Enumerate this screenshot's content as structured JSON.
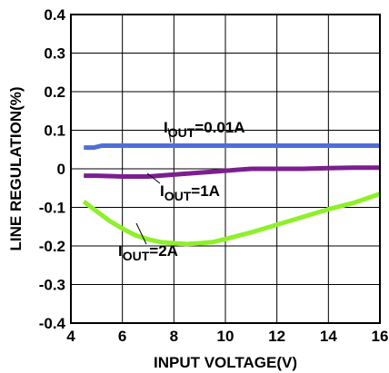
{
  "chart_data": {
    "type": "line",
    "xlabel": "INPUT VOLTAGE(V)",
    "ylabel": "LINE REGULATION(%)",
    "xlim": [
      4,
      16
    ],
    "ylim": [
      -0.4,
      0.4
    ],
    "x_ticks": [
      4,
      6,
      8,
      10,
      12,
      14,
      16
    ],
    "y_ticks": [
      0.4,
      0.3,
      0.2,
      0.1,
      0,
      -0.1,
      -0.2,
      -0.3,
      -0.4
    ],
    "x_tick_labels": [
      "4",
      "6",
      "8",
      "10",
      "12",
      "14",
      "16"
    ],
    "y_tick_labels": [
      "0.4",
      "0.3",
      "0.2",
      "0.1",
      "0",
      "-0.1",
      "-0.2",
      "-0.3",
      "-0.4"
    ],
    "grid": true,
    "series": [
      {
        "label_prefix": "I",
        "label_sub": "OUT",
        "label_suffix": "=0.01A",
        "color": "#4f6fd6",
        "points": [
          [
            4.5,
            0.055
          ],
          [
            4.9,
            0.055
          ],
          [
            5.2,
            0.06
          ],
          [
            6,
            0.06
          ],
          [
            8,
            0.06
          ],
          [
            10,
            0.06
          ],
          [
            12,
            0.06
          ],
          [
            14,
            0.06
          ],
          [
            16,
            0.06
          ]
        ]
      },
      {
        "label_prefix": "I",
        "label_sub": "OUT",
        "label_suffix": "=1A",
        "color": "#7b1f8f",
        "points": [
          [
            4.5,
            -0.018
          ],
          [
            5,
            -0.018
          ],
          [
            6,
            -0.02
          ],
          [
            7,
            -0.02
          ],
          [
            8,
            -0.015
          ],
          [
            9,
            -0.01
          ],
          [
            10,
            -0.005
          ],
          [
            11,
            0.0
          ],
          [
            12,
            0.0
          ],
          [
            13,
            0.0
          ],
          [
            14,
            0.002
          ],
          [
            15,
            0.003
          ],
          [
            16,
            0.003
          ]
        ]
      },
      {
        "label_prefix": "I",
        "label_sub": "OUT",
        "label_suffix": "=2A",
        "color": "#8ef02a",
        "points": [
          [
            4.5,
            -0.085
          ],
          [
            5,
            -0.11
          ],
          [
            5.5,
            -0.135
          ],
          [
            6,
            -0.155
          ],
          [
            6.5,
            -0.172
          ],
          [
            7,
            -0.183
          ],
          [
            7.5,
            -0.19
          ],
          [
            8,
            -0.193
          ],
          [
            8.5,
            -0.195
          ],
          [
            9,
            -0.193
          ],
          [
            9.5,
            -0.19
          ],
          [
            10,
            -0.182
          ],
          [
            11,
            -0.165
          ],
          [
            12,
            -0.145
          ],
          [
            13,
            -0.125
          ],
          [
            14,
            -0.105
          ],
          [
            15,
            -0.088
          ],
          [
            16,
            -0.065
          ]
        ]
      }
    ]
  }
}
